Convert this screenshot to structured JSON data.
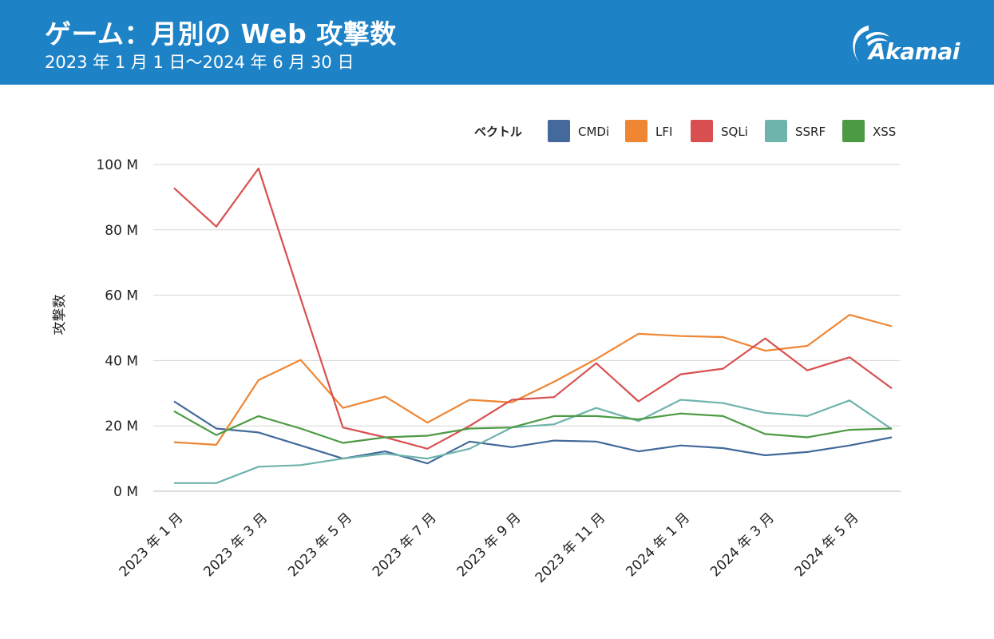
{
  "header": {
    "title": "ゲーム：月別の Web 攻撃数",
    "subtitle": "2023 年 1 月 1 日〜2024 年 6 月 30 日",
    "logo_text": "Akamai",
    "background_color": "#1d82c6"
  },
  "chart_data": {
    "type": "line",
    "title": "ゲーム：月別の Web 攻撃数",
    "subtitle": "2023 年 1 月 1 日〜2024 年 6 月 30 日",
    "xlabel": "",
    "ylabel": "攻撃数",
    "ylim": [
      0,
      100
    ],
    "y_unit": "M",
    "y_ticks": [
      "0 M",
      "20 M",
      "40 M",
      "60 M",
      "80 M",
      "100 M"
    ],
    "y_tick_values": [
      0,
      20,
      40,
      60,
      80,
      100
    ],
    "grid": true,
    "legend_title": "ベクトル",
    "legend_position": "top-right",
    "categories": [
      "2023-01",
      "2023-02",
      "2023-03",
      "2023-04",
      "2023-05",
      "2023-06",
      "2023-07",
      "2023-08",
      "2023-09",
      "2023-10",
      "2023-11",
      "2023-12",
      "2024-01",
      "2024-02",
      "2024-03",
      "2024-04",
      "2024-05",
      "2024-06"
    ],
    "x_tick_labels": [
      {
        "index": 0,
        "label": "2023 年 1 月"
      },
      {
        "index": 2,
        "label": "2023 年 3 月"
      },
      {
        "index": 4,
        "label": "2023 年 5 月"
      },
      {
        "index": 6,
        "label": "2023 年 7 月"
      },
      {
        "index": 8,
        "label": "2023 年 9 月"
      },
      {
        "index": 10,
        "label": "2023 年 11 月"
      },
      {
        "index": 12,
        "label": "2024 年 1 月"
      },
      {
        "index": 14,
        "label": "2024 年 3 月"
      },
      {
        "index": 16,
        "label": "2024 年 5 月"
      }
    ],
    "series": [
      {
        "name": "CMDi",
        "color": "#436a9a",
        "values": [
          27.5,
          19.2,
          18.0,
          14.0,
          10.0,
          12.2,
          8.5,
          15.2,
          13.5,
          15.5,
          15.2,
          12.2,
          14.0,
          13.2,
          11.0,
          12.0,
          14.0,
          16.5
        ]
      },
      {
        "name": "LFI",
        "color": "#ef8633",
        "values": [
          15.0,
          14.2,
          34.0,
          40.2,
          25.5,
          29.0,
          21.0,
          28.0,
          27.2,
          33.5,
          40.5,
          48.2,
          47.5,
          47.2,
          43.0,
          44.5,
          54.0,
          50.5
        ]
      },
      {
        "name": "SQLi",
        "color": "#d94f4f",
        "values": [
          92.8,
          81.0,
          98.8,
          59.0,
          19.5,
          16.5,
          13.0,
          20.0,
          28.0,
          28.8,
          39.2,
          27.5,
          35.8,
          37.5,
          46.8,
          37.0,
          41.0,
          31.5
        ]
      },
      {
        "name": "SSRF",
        "color": "#6fb3ad",
        "values": [
          2.5,
          2.5,
          7.5,
          8.0,
          10.0,
          11.5,
          10.0,
          13.0,
          19.5,
          20.5,
          25.5,
          21.5,
          28.0,
          27.0,
          24.0,
          23.0,
          27.8,
          19.0
        ]
      },
      {
        "name": "XSS",
        "color": "#4d9a44",
        "values": [
          24.5,
          17.2,
          23.0,
          19.2,
          14.8,
          16.5,
          17.0,
          19.2,
          19.5,
          23.0,
          23.0,
          22.0,
          23.8,
          23.0,
          17.5,
          16.5,
          18.8,
          19.2
        ]
      }
    ]
  }
}
